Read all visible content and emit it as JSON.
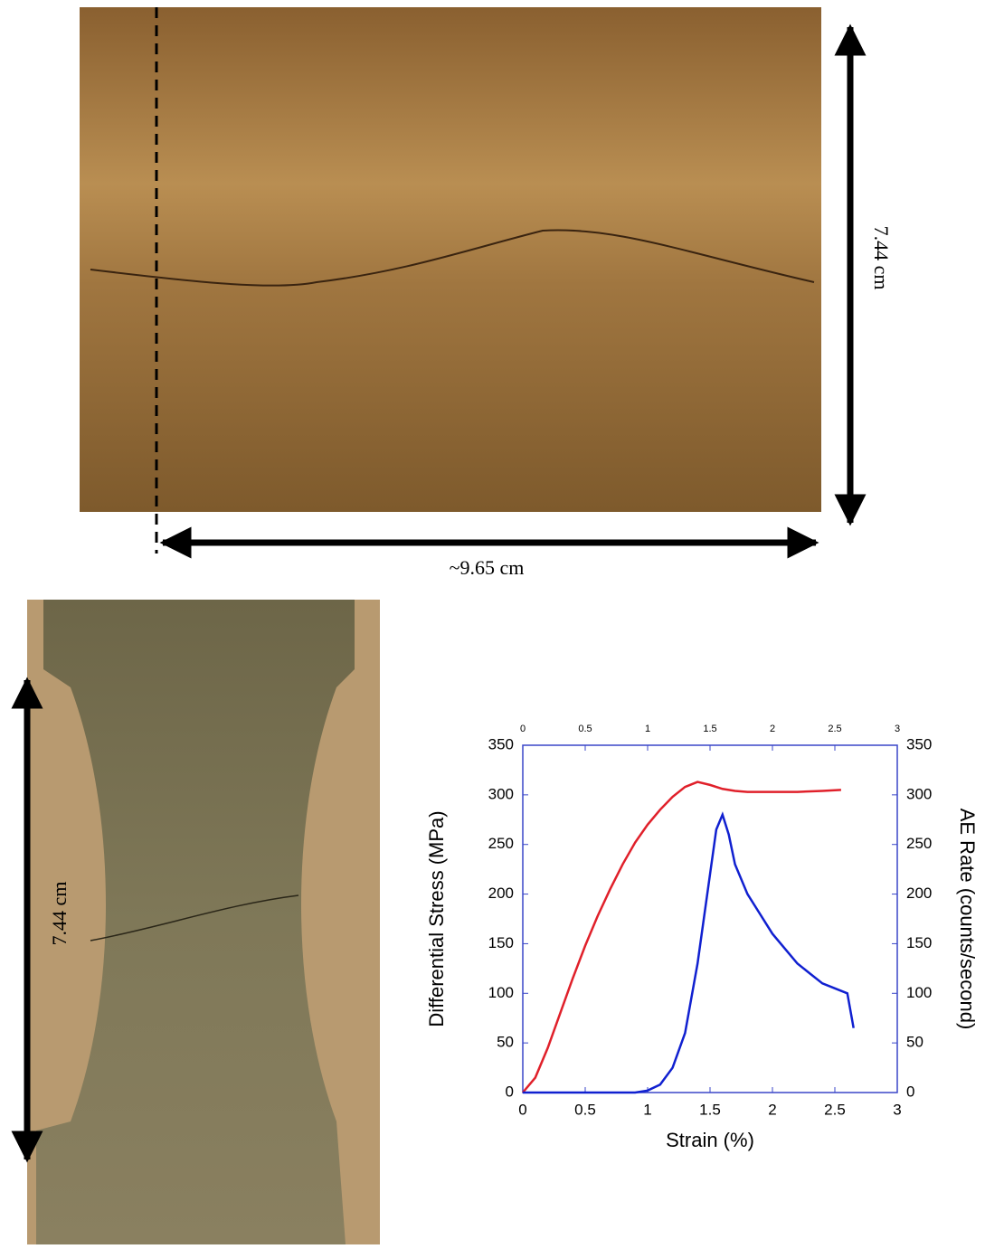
{
  "figure": {
    "top_height_label": "7.44 cm",
    "top_width_label": "~9.65 cm",
    "bottom_height_label": "7.44 cm"
  },
  "chart_data": {
    "type": "line",
    "x_label": "Strain (%)",
    "y_label": "Differential Stress (MPa)",
    "y2_label": "AE Rate (counts/second)",
    "xlim": [
      0,
      3
    ],
    "xticks": [
      0,
      0.5,
      1,
      1.5,
      2,
      2.5,
      3
    ],
    "ylim": [
      0,
      350
    ],
    "yticks": [
      0,
      50,
      100,
      150,
      200,
      250,
      300,
      350
    ],
    "y2lim": [
      0,
      350
    ],
    "y2ticks": [
      0,
      50,
      100,
      150,
      200,
      250,
      300,
      350
    ],
    "axis_color": "#3a46c8",
    "series": [
      {
        "color": "#e0202a",
        "x": [
          0,
          0.1,
          0.2,
          0.3,
          0.4,
          0.5,
          0.6,
          0.7,
          0.8,
          0.9,
          1.0,
          1.1,
          1.2,
          1.3,
          1.4,
          1.5,
          1.6,
          1.7,
          1.8,
          2.0,
          2.2,
          2.4,
          2.55
        ],
        "values": [
          0,
          15,
          45,
          80,
          115,
          148,
          178,
          205,
          230,
          252,
          270,
          285,
          298,
          308,
          313,
          310,
          306,
          304,
          303,
          303,
          303,
          304,
          305
        ]
      },
      {
        "color": "#1020d0",
        "axis": "y2",
        "x": [
          0,
          0.5,
          0.9,
          1.0,
          1.1,
          1.2,
          1.3,
          1.4,
          1.5,
          1.55,
          1.6,
          1.65,
          1.7,
          1.8,
          1.9,
          2.0,
          2.1,
          2.2,
          2.3,
          2.4,
          2.5,
          2.6,
          2.65
        ],
        "values": [
          0,
          0,
          0,
          2,
          8,
          25,
          60,
          130,
          220,
          265,
          280,
          260,
          230,
          200,
          180,
          160,
          145,
          130,
          120,
          110,
          105,
          100,
          65
        ]
      }
    ]
  }
}
